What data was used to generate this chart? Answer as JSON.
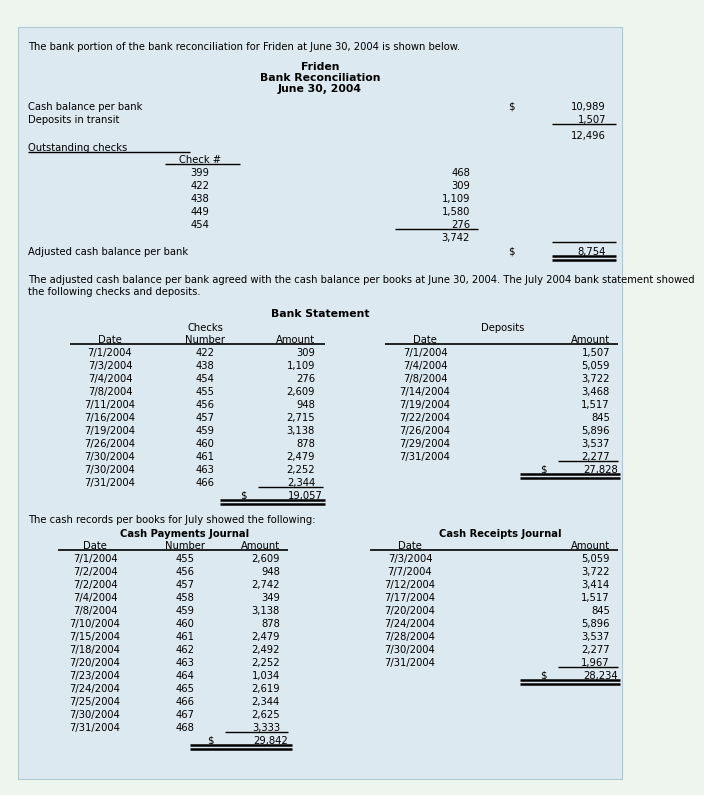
{
  "bg_outer": "#eaf2ea",
  "bg_color": "#dce9f0",
  "text_color": "#000000",
  "intro_text": "The bank portion of the bank reconciliation for Friden at June 30, 2004 is shown below.",
  "title1": "Friden",
  "title2": "Bank Reconciliation",
  "title3": "June 30, 2004",
  "recon": {
    "cash_balance_per_bank_label": "Cash balance per bank",
    "deposits_in_transit_label": "Deposits in transit",
    "cash_balance_per_bank_value": "10,989",
    "deposits_in_transit_value": "1,507",
    "subtotal_value": "12,496",
    "outstanding_checks_label": "Outstanding checks",
    "check_header": "Check #",
    "checks": [
      {
        "number": "399",
        "amount": "468"
      },
      {
        "number": "422",
        "amount": "309"
      },
      {
        "number": "438",
        "amount": "1,109"
      },
      {
        "number": "449",
        "amount": "1,580"
      },
      {
        "number": "454",
        "amount": "276"
      }
    ],
    "checks_total": "3,742",
    "adjusted_label": "Adjusted cash balance per bank",
    "adjusted_value": "8,754"
  },
  "paragraph2": "The adjusted cash balance per bank agreed with the cash balance per books at June 30, 2004. The July 2004 bank statement showed\nthe following checks and deposits.",
  "bank_statement_title": "Bank Statement",
  "bs_checks": [
    [
      "7/1/2004",
      "422",
      "309"
    ],
    [
      "7/3/2004",
      "438",
      "1,109"
    ],
    [
      "7/4/2004",
      "454",
      "276"
    ],
    [
      "7/8/2004",
      "455",
      "2,609"
    ],
    [
      "7/11/2004",
      "456",
      "948"
    ],
    [
      "7/16/2004",
      "457",
      "2,715"
    ],
    [
      "7/19/2004",
      "459",
      "3,138"
    ],
    [
      "7/26/2004",
      "460",
      "878"
    ],
    [
      "7/30/2004",
      "461",
      "2,479"
    ],
    [
      "7/30/2004",
      "463",
      "2,252"
    ],
    [
      "7/31/2004",
      "466",
      "2,344"
    ]
  ],
  "bs_checks_total": "19,057",
  "bs_deposits": [
    [
      "7/1/2004",
      "1,507"
    ],
    [
      "7/4/2004",
      "5,059"
    ],
    [
      "7/8/2004",
      "3,722"
    ],
    [
      "7/14/2004",
      "3,468"
    ],
    [
      "7/19/2004",
      "1,517"
    ],
    [
      "7/22/2004",
      "845"
    ],
    [
      "7/26/2004",
      "5,896"
    ],
    [
      "7/29/2004",
      "3,537"
    ],
    [
      "7/31/2004",
      "2,277"
    ]
  ],
  "bs_deposits_total": "27,828",
  "paragraph3": "The cash records per books for July showed the following:",
  "cpj_title": "Cash Payments Journal",
  "crj_title": "Cash Receipts Journal",
  "cpj_rows": [
    [
      "7/1/2004",
      "455",
      "2,609"
    ],
    [
      "7/2/2004",
      "456",
      "948"
    ],
    [
      "7/2/2004",
      "457",
      "2,742"
    ],
    [
      "7/4/2004",
      "458",
      "349"
    ],
    [
      "7/8/2004",
      "459",
      "3,138"
    ],
    [
      "7/10/2004",
      "460",
      "878"
    ],
    [
      "7/15/2004",
      "461",
      "2,479"
    ],
    [
      "7/18/2004",
      "462",
      "2,492"
    ],
    [
      "7/20/2004",
      "463",
      "2,252"
    ],
    [
      "7/23/2004",
      "464",
      "1,034"
    ],
    [
      "7/24/2004",
      "465",
      "2,619"
    ],
    [
      "7/25/2004",
      "466",
      "2,344"
    ],
    [
      "7/30/2004",
      "467",
      "2,625"
    ],
    [
      "7/31/2004",
      "468",
      "3,333"
    ]
  ],
  "cpj_total": "29,842",
  "crj_rows": [
    [
      "7/3/2004",
      "5,059"
    ],
    [
      "7/7/2004",
      "3,722"
    ],
    [
      "7/12/2004",
      "3,414"
    ],
    [
      "7/17/2004",
      "1,517"
    ],
    [
      "7/20/2004",
      "845"
    ],
    [
      "7/24/2004",
      "5,896"
    ],
    [
      "7/28/2004",
      "3,537"
    ],
    [
      "7/30/2004",
      "2,277"
    ],
    [
      "7/31/2004",
      "1,967"
    ]
  ],
  "crj_total": "28,234"
}
